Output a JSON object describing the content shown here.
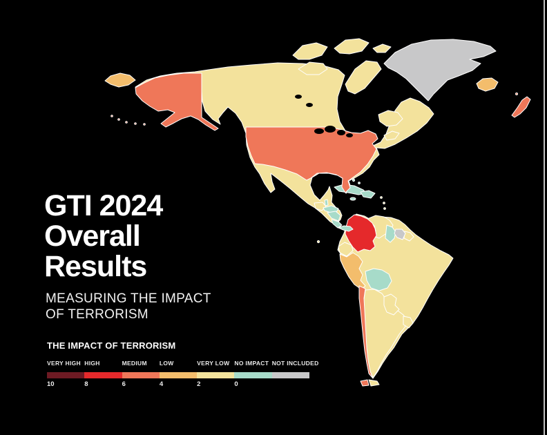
{
  "colors": {
    "background": "#000000",
    "edge_line": "#c4c4c4"
  },
  "header": {
    "title_lines": [
      "GTI 2024",
      "Overall",
      "Results"
    ],
    "subtitle_lines": [
      "MEASURING THE IMPACT",
      "OF TERRORISM"
    ]
  },
  "legend": {
    "title": "THE IMPACT OF TERRORISM",
    "categories": [
      {
        "id": "very_high",
        "label": "VERY HIGH",
        "color": "#6d1a23",
        "scale_value": "10"
      },
      {
        "id": "high",
        "label": "HIGH",
        "color": "#e5292b",
        "scale_value": "8"
      },
      {
        "id": "medium",
        "label": "MEDIUM",
        "color": "#ef7759",
        "scale_value": "6"
      },
      {
        "id": "low",
        "label": "LOW",
        "color": "#f3bd6c",
        "scale_value": "4"
      },
      {
        "id": "very_low",
        "label": "VERY LOW",
        "color": "#f3e29c",
        "scale_value": "2"
      },
      {
        "id": "no_impact",
        "label": "NO IMPACT",
        "color": "#a7dbc9",
        "scale_value": "0"
      },
      {
        "id": "not_included",
        "label": "NOT INCLUDED",
        "color": "#c8c8c9",
        "scale_value": ""
      }
    ]
  },
  "map_data": {
    "type": "choropleth",
    "region_shown": "Americas with Greenland, Iceland, British Isles and NE Russia edge",
    "countries": {
      "north-america-landmass": "very_low",
      "south-america-landmass": "very_low",
      "arctic-islands": "very_low",
      "newfoundland": "very_low",
      "nova-scotia": "very_low",
      "canada": "very_low",
      "united-states": "medium",
      "mexico": "very_low",
      "russia": "low",
      "greenland": "not_included",
      "iceland": "low",
      "united-kingdom": "medium",
      "guatemala": "very_low",
      "belize": "no_impact",
      "honduras": "no_impact",
      "nicaragua": "no_impact",
      "costa-rica": "no_impact",
      "panama": "no_impact",
      "cuba": "no_impact",
      "jamaica": "no_impact",
      "hispaniola": "no_impact",
      "bahamas": "no_impact",
      "lesser-antilles": "very_low",
      "colombia": "high",
      "venezuela": "very_low",
      "guyana": "no_impact",
      "suriname": "not_included",
      "french-guiana": "very_low",
      "ecuador": "very_low",
      "galapagos": "very_low",
      "peru": "low",
      "brazil": "very_low",
      "bolivia": "no_impact",
      "paraguay": "very_low",
      "chile": "medium",
      "argentina": "very_low",
      "uruguay": "very_low",
      "tierra-del-fuego-argentina": "very_low",
      "tierra-del-fuego-chile": "medium"
    }
  }
}
